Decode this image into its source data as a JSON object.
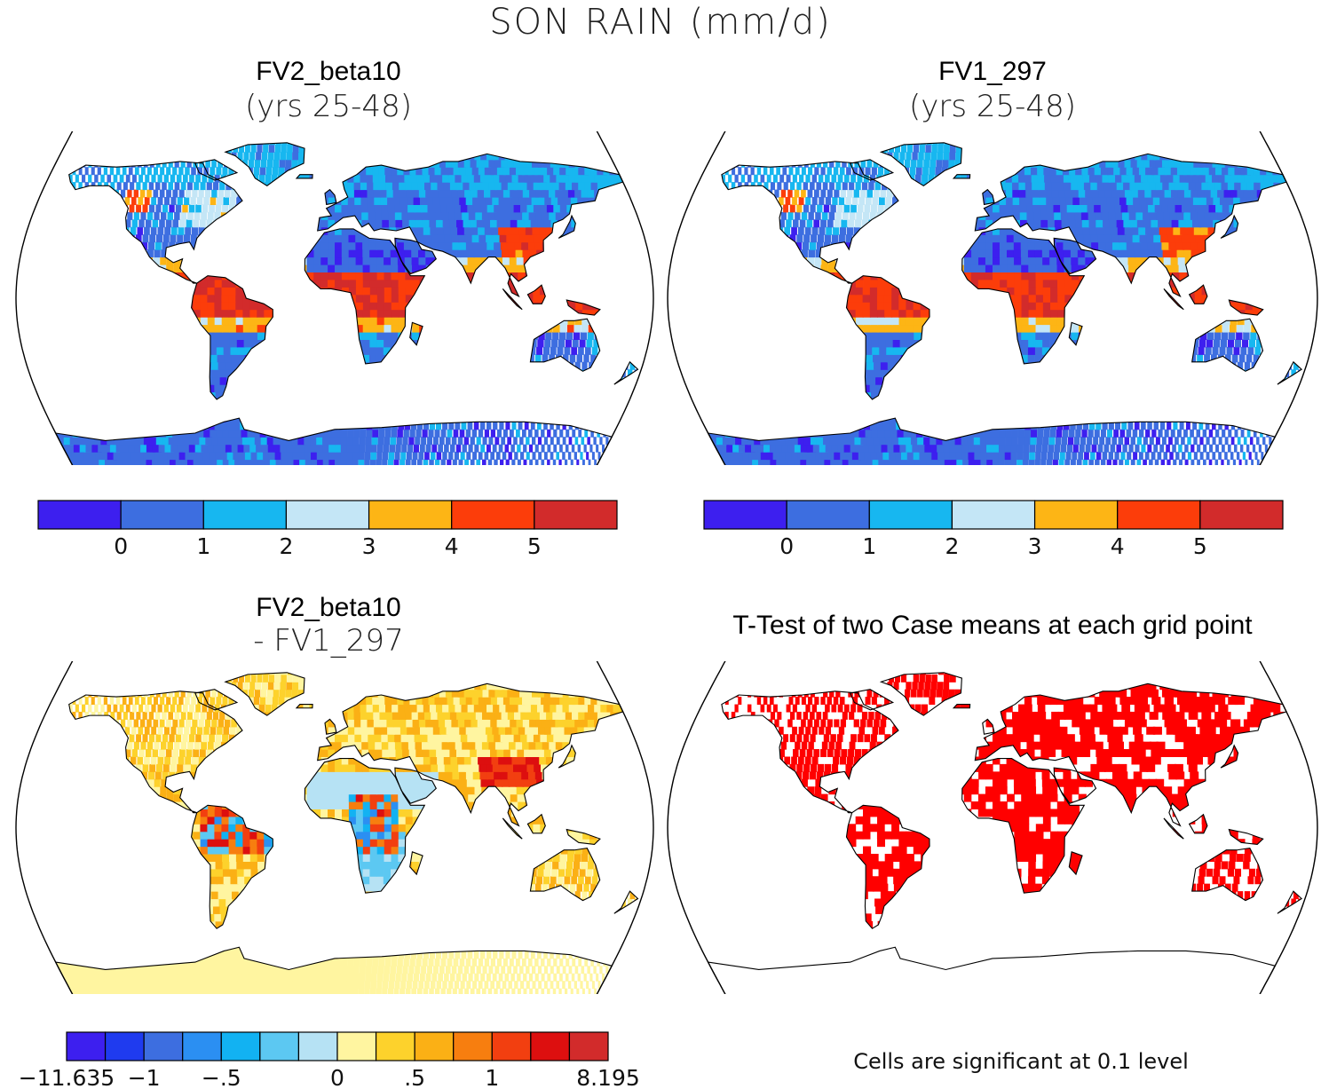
{
  "figure": {
    "title": "SON RAIN (mm/d)"
  },
  "panels": [
    {
      "id": "fv2",
      "title": "FV2_beta10",
      "subtitle": "(yrs 25-48)"
    },
    {
      "id": "fv1",
      "title": "FV1_297",
      "subtitle": "(yrs 25-48)"
    },
    {
      "id": "diff",
      "title": "FV2_beta10",
      "subtitle": "- FV1_297"
    },
    {
      "id": "ttest",
      "title": "T-Test of two Case means at each grid point",
      "subtitle": ""
    }
  ],
  "colorbar_abs": {
    "colors": [
      "#3d1fef",
      "#3d6ee0",
      "#17b7f0",
      "#c4e6f6",
      "#fdb515",
      "#fc3d0a",
      "#d22b2b"
    ],
    "ticks": [
      "0",
      "1",
      "2",
      "3",
      "4",
      "5"
    ]
  },
  "colorbar_diff": {
    "colors": [
      "#3d1fef",
      "#1f3bef",
      "#3d6ee0",
      "#2b8ff2",
      "#12b2f2",
      "#5cc8f2",
      "#b6e2f4",
      "#fff5a0",
      "#fdd22c",
      "#fbb015",
      "#f77e0f",
      "#f23f10",
      "#dd0f0f",
      "#d22b2b"
    ],
    "ticks": [
      "-11.635",
      "-1",
      "-.5",
      "0",
      ".5",
      "1",
      "8.195"
    ]
  },
  "significance_note": "Cells are significant at 0.1 level",
  "map_colors": {
    "ocean": "#ffffff",
    "outline": "#000000",
    "significant": "#ff0000"
  }
}
